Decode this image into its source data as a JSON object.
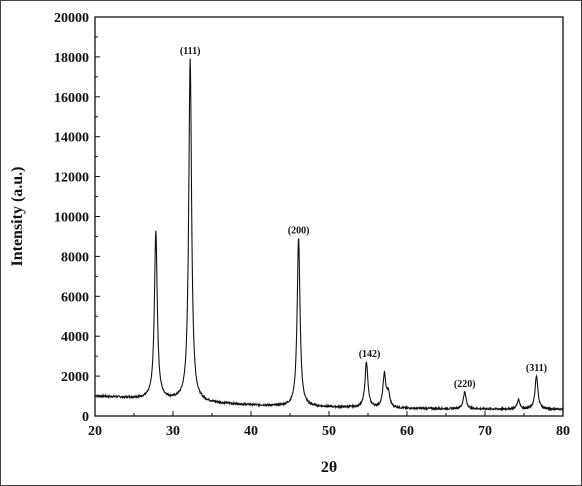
{
  "chart_data": {
    "type": "line",
    "title": "",
    "xlabel": "2θ",
    "ylabel": "Intensity (a.u.)",
    "xlim": [
      20,
      80
    ],
    "ylim": [
      0,
      20000
    ],
    "xticks": [
      20,
      30,
      40,
      50,
      60,
      70,
      80
    ],
    "yticks": [
      0,
      2000,
      4000,
      6000,
      8000,
      10000,
      12000,
      14000,
      16000,
      18000,
      20000
    ],
    "grid": false,
    "legend": "none",
    "line_color": "#111111",
    "series": [
      {
        "baseline": [
          [
            20,
            1000
          ],
          [
            25,
            900
          ],
          [
            30,
            800
          ],
          [
            35,
            650
          ],
          [
            40,
            550
          ],
          [
            45,
            480
          ],
          [
            50,
            450
          ],
          [
            55,
            420
          ],
          [
            60,
            380
          ],
          [
            65,
            360
          ],
          [
            70,
            350
          ],
          [
            75,
            340
          ],
          [
            80,
            340
          ]
        ],
        "peaks": [
          {
            "x": 27.8,
            "y": 9200
          },
          {
            "x": 32.2,
            "y": 17900
          },
          {
            "x": 46.1,
            "y": 8900
          },
          {
            "x": 54.8,
            "y": 2700
          },
          {
            "x": 57.1,
            "y": 2050
          },
          {
            "x": 57.6,
            "y": 1100
          },
          {
            "x": 67.4,
            "y": 1200
          },
          {
            "x": 74.3,
            "y": 800
          },
          {
            "x": 76.6,
            "y": 2000
          }
        ]
      }
    ],
    "annotations": [
      {
        "text": "(111)",
        "x": 32.2,
        "y": 17900
      },
      {
        "text": "(200)",
        "x": 46.1,
        "y": 8900
      },
      {
        "text": "(142)",
        "x": 55.2,
        "y": 2700
      },
      {
        "text": "(220)",
        "x": 67.4,
        "y": 1200
      },
      {
        "text": "(311)",
        "x": 76.6,
        "y": 2000
      }
    ]
  }
}
